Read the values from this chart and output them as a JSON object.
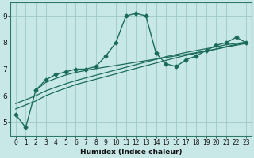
{
  "title": "",
  "xlabel": "Humidex (Indice chaleur)",
  "ylabel": "",
  "bg_color": "#c8e8e8",
  "grid_color": "#a0c8c8",
  "line_color": "#1a6b5a",
  "marker_color": "#1a6b5a",
  "xlim": [
    -0.5,
    23.5
  ],
  "ylim": [
    4.5,
    9.5
  ],
  "yticks": [
    5,
    6,
    7,
    8,
    9
  ],
  "xticks": [
    0,
    1,
    2,
    3,
    4,
    5,
    6,
    7,
    8,
    9,
    10,
    11,
    12,
    13,
    14,
    15,
    16,
    17,
    18,
    19,
    20,
    21,
    22,
    23
  ],
  "series": [
    {
      "x": [
        0,
        1,
        2,
        3,
        4,
        5,
        6,
        7,
        8,
        9,
        10,
        11,
        12,
        13,
        14,
        15,
        16,
        17,
        18,
        19,
        20,
        21,
        22,
        23
      ],
      "y": [
        5.3,
        4.8,
        6.2,
        6.6,
        6.8,
        6.9,
        7.0,
        7.0,
        7.1,
        7.5,
        8.0,
        9.0,
        9.1,
        9.0,
        7.6,
        7.2,
        7.1,
        7.35,
        7.5,
        7.7,
        7.9,
        8.0,
        8.2,
        8.0
      ],
      "marker": "D",
      "markersize": 2.5,
      "linewidth": 1.0
    },
    {
      "x": [
        0,
        1,
        2,
        3,
        4,
        5,
        6,
        7,
        8,
        9,
        10,
        11,
        12,
        13,
        14,
        15,
        16,
        17,
        18,
        19,
        20,
        21,
        22,
        23
      ],
      "y": [
        5.5,
        5.65,
        5.8,
        6.0,
        6.15,
        6.28,
        6.42,
        6.52,
        6.62,
        6.72,
        6.82,
        6.93,
        7.03,
        7.13,
        7.23,
        7.33,
        7.43,
        7.52,
        7.6,
        7.68,
        7.76,
        7.85,
        7.93,
        8.0
      ],
      "marker": null,
      "markersize": 0,
      "linewidth": 0.9
    },
    {
      "x": [
        0,
        1,
        2,
        3,
        4,
        5,
        6,
        7,
        8,
        9,
        10,
        11,
        12,
        13,
        14,
        15,
        16,
        17,
        18,
        19,
        20,
        21,
        22,
        23
      ],
      "y": [
        5.7,
        5.85,
        6.0,
        6.18,
        6.32,
        6.45,
        6.57,
        6.67,
        6.77,
        6.87,
        6.97,
        7.07,
        7.17,
        7.27,
        7.37,
        7.47,
        7.55,
        7.63,
        7.7,
        7.77,
        7.84,
        7.92,
        7.97,
        8.02
      ],
      "marker": null,
      "markersize": 0,
      "linewidth": 0.9
    },
    {
      "x": [
        2,
        3,
        4,
        5,
        6,
        7,
        8,
        9,
        10,
        11,
        12,
        13,
        14,
        15,
        16,
        17,
        18,
        19,
        20,
        21,
        22,
        23
      ],
      "y": [
        6.2,
        6.5,
        6.65,
        6.78,
        6.88,
        6.95,
        7.02,
        7.08,
        7.14,
        7.2,
        7.26,
        7.32,
        7.38,
        7.44,
        7.5,
        7.56,
        7.62,
        7.68,
        7.75,
        7.83,
        7.9,
        7.97
      ],
      "marker": null,
      "markersize": 0,
      "linewidth": 0.9
    }
  ]
}
